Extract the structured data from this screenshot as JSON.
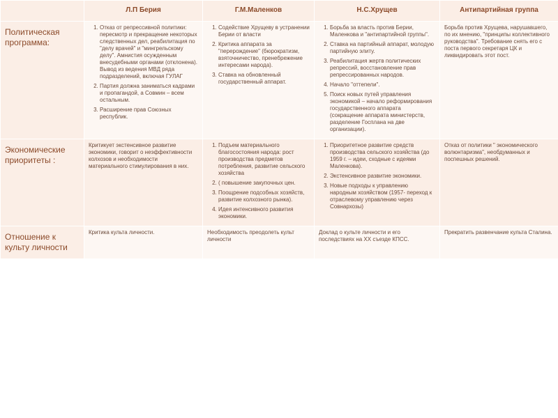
{
  "colors": {
    "header_bg": "#fbeee6",
    "header_text": "#8b4a2a",
    "band_light": "#fdf7f3",
    "band_dark": "#fbeee6",
    "cell_text": "#6b4a3a",
    "border": "#ffffff"
  },
  "columns": [
    "",
    "Л.П Берия",
    "Г.М.Маленков",
    "Н.С.Хрущев",
    "Антипартийная группа"
  ],
  "rows": [
    {
      "label": "Политическая программа:",
      "cells": [
        {
          "type": "list",
          "items": [
            "Отказ от репрессивной политики: пересмотр и прекращение некоторых следственных дел, реабилитация по \"делу врачей\" и \"мингрельскому делу\". Амнистия осужденным внесудебными органами (отклонена). Вывод из ведения МВД ряда подразделений, включая ГУЛАГ",
            "Партия должна заниматься кадрами и пропагандой, а Совмин – всем остальным.",
            "Расширение прав Союзных республик."
          ]
        },
        {
          "type": "list",
          "items": [
            "Содействие Хрущеву в устранении Берии от власти",
            "Критика аппарата за \"перерождение\" (бюрократизм, взяточничество, пренебрежение интересами народа).",
            "Ставка на обновленный государственный аппарат."
          ]
        },
        {
          "type": "list",
          "items": [
            "Борьба за власть против Берии, Маленкова и \"антипартийной группы\".",
            "Ставка на партийный аппарат, молодую партийную элиту.",
            "Реабилитация жертв политических репрессий, восстановление прав репрессированных народов.",
            "Начало \"оттепели\".",
            "Поиск новых путей управления экономикой – начало реформирования государственного аппарата (сокращение аппарата министерств, разделение Госплана на две организации)."
          ]
        },
        {
          "type": "text",
          "text": "Борьба против Хрущева, нарушавшего, по их мнению, \"принципы коллективного руководства\". Требование снять его с поста первого секретаря ЦК и ликвидировать этот пост."
        }
      ]
    },
    {
      "label": "Экономические приоритеты :",
      "cells": [
        {
          "type": "text",
          "text": "Критикует экстенсивное развитие экономики, говорит о неэффективности колхозов и необходимости материального стимулирования в них."
        },
        {
          "type": "list",
          "items": [
            "Подъем материального благосостояния народа: рост производства предметов потребления, развитие сельского хозяйства",
            "( повышение закупочных цен.",
            "Поощрение подсобных хозяйств, развитие колхозного рынка).",
            "Идея интенсивного развития экономики."
          ]
        },
        {
          "type": "list",
          "items": [
            "Приоритетное развитие средств производства сельского хозяйства (до 1959 г. – идеи, сходные с идеями Маленкова).",
            "Экстенсивное развитие экономики.",
            "Новые подходы к управлению народным хозяйством (1957- переход к отраслевому управлению через Совнархозы)"
          ]
        },
        {
          "type": "text",
          "text": "Отказ от политики \" экономического волюнтаризма\", необдуманных и поспешных решений."
        }
      ]
    },
    {
      "label": "Отношение к культу личности",
      "cells": [
        {
          "type": "text",
          "text": "Критика культа личности."
        },
        {
          "type": "text",
          "text": "Необходимость преодолеть культ личности"
        },
        {
          "type": "text",
          "text": "Доклад о культе личности и его последствиях на XX съезде КПСС."
        },
        {
          "type": "text",
          "text": "Прекратить развенчание культа Сталина."
        }
      ]
    }
  ]
}
